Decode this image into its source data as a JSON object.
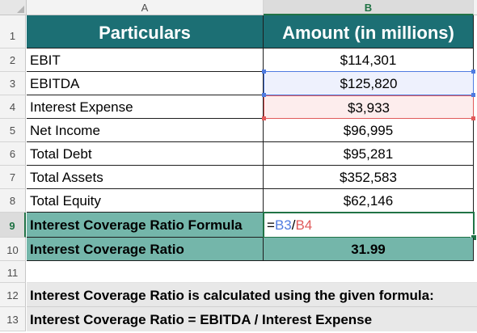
{
  "columns": [
    "A",
    "B"
  ],
  "row_numbers": [
    "1",
    "2",
    "3",
    "4",
    "5",
    "6",
    "7",
    "8",
    "9",
    "10",
    "11",
    "12",
    "13"
  ],
  "header": {
    "particulars": "Particulars",
    "amount": "Amount (in millions)"
  },
  "rows": [
    {
      "label": "EBIT",
      "value": "$114,301"
    },
    {
      "label": "EBITDA",
      "value": "$125,820"
    },
    {
      "label": "Interest Expense",
      "value": "$3,933"
    },
    {
      "label": "Net Income",
      "value": "$96,995"
    },
    {
      "label": "Total Debt",
      "value": "$95,281"
    },
    {
      "label": "Total Assets",
      "value": "$352,583"
    },
    {
      "label": "Total Equity",
      "value": "$62,146"
    }
  ],
  "formula_row": {
    "label": "Interest Coverage Ratio Formula",
    "eq": "=",
    "ref1": "B3",
    "slash": "/",
    "ref2": "B4"
  },
  "result_row": {
    "label": "Interest Coverage Ratio",
    "value": "31.99"
  },
  "notes": [
    "Interest Coverage Ratio is calculated using the given formula:",
    "Interest Coverage Ratio = EBITDA / Interest Expense"
  ],
  "colors": {
    "teal": "#1c6f74",
    "light_teal": "#74b6aa",
    "excel_green": "#217346",
    "ref_blue": "#4f7be0",
    "ref_red": "#e05a5a"
  }
}
